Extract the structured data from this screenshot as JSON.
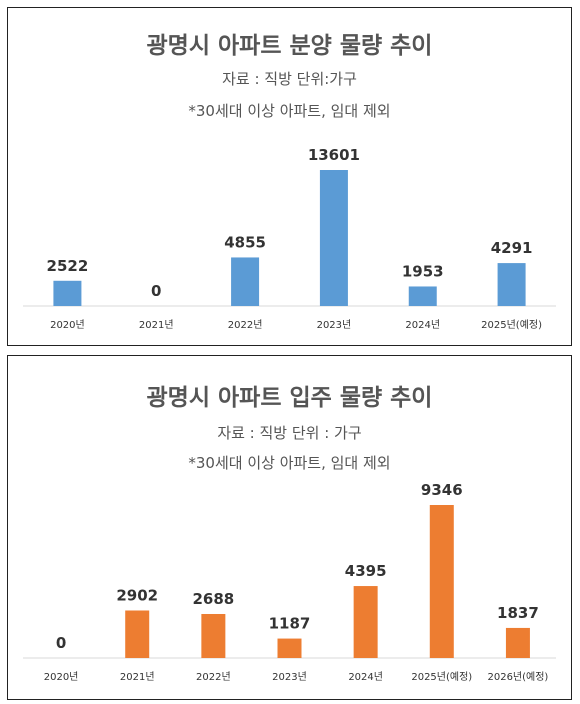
{
  "chart_data": [
    {
      "type": "bar",
      "title": "광명시 아파트 분양 물량 추이",
      "subtitle": "자료 : 직방  단위:가구",
      "note": "*30세대 이상 아파트, 임대 제외",
      "categories": [
        "2020년",
        "2021년",
        "2022년",
        "2023년",
        "2024년",
        "2025년(예정)"
      ],
      "values": [
        2522,
        0,
        4855,
        13601,
        1953,
        4291
      ],
      "value_labels": [
        "2522",
        "0",
        "4855",
        "13601",
        "1953",
        "4291"
      ],
      "bar_color": "#5b9bd5",
      "ylim": [
        0,
        13601
      ],
      "grid": false
    },
    {
      "type": "bar",
      "title": "광명시 아파트 입주 물량 추이",
      "subtitle": "자료 : 직방   단위 : 가구",
      "note": "*30세대 이상 아파트, 임대 제외",
      "categories": [
        "2020년",
        "2021년",
        "2022년",
        "2023년",
        "2024년",
        "2025년(예정)",
        "2026년(예정)"
      ],
      "values": [
        0,
        2902,
        2688,
        1187,
        4395,
        9346,
        1837
      ],
      "value_labels": [
        "0",
        "2902",
        "2688",
        "1187",
        "4395",
        "9346",
        "1837"
      ],
      "bar_color": "#ed7d31",
      "ylim": [
        0,
        9346
      ],
      "grid": false
    }
  ]
}
